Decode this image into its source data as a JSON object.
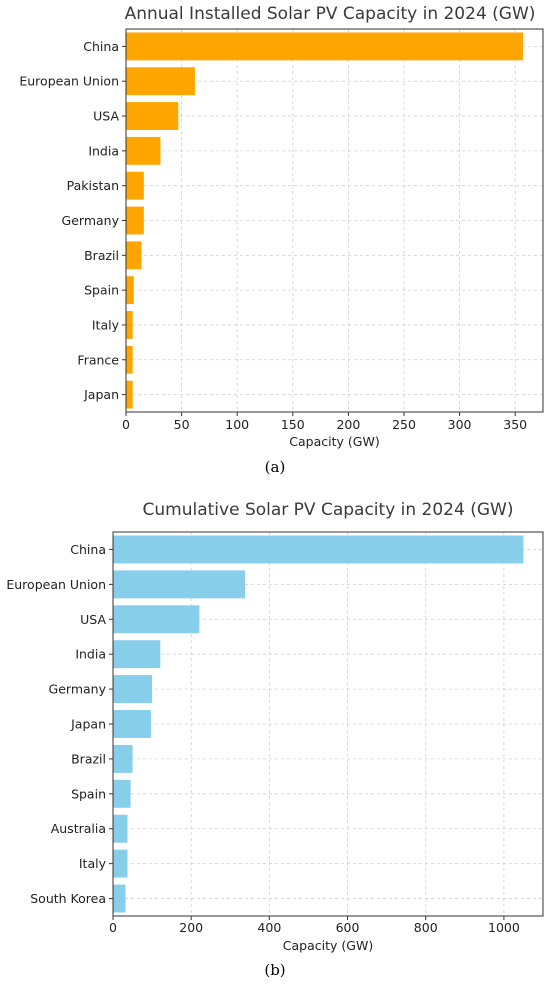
{
  "chart_data": [
    {
      "type": "bar",
      "orientation": "horizontal",
      "title": "Annual Installed Solar PV Capacity in 2024 (GW)",
      "xlabel": "Capacity (GW)",
      "ylabel": "",
      "caption": "(a)",
      "categories": [
        "China",
        "European Union",
        "USA",
        "India",
        "Pakistan",
        "Germany",
        "Brazil",
        "Spain",
        "Italy",
        "France",
        "Japan"
      ],
      "values": [
        357,
        62,
        47,
        31,
        16,
        16,
        14,
        7,
        6,
        6,
        6
      ],
      "xlim": [
        0,
        375
      ],
      "xticks": [
        0,
        50,
        100,
        150,
        200,
        250,
        300,
        350
      ],
      "color": "#FFA500",
      "grid": true,
      "legend": "none"
    },
    {
      "type": "bar",
      "orientation": "horizontal",
      "title": "Cumulative Solar PV Capacity in 2024 (GW)",
      "xlabel": "Capacity (GW)",
      "ylabel": "",
      "caption": "(b)",
      "categories": [
        "China",
        "European Union",
        "USA",
        "India",
        "Germany",
        "Japan",
        "Brazil",
        "Spain",
        "Australia",
        "Italy",
        "South Korea"
      ],
      "values": [
        1050,
        338,
        221,
        121,
        100,
        97,
        50,
        45,
        37,
        37,
        32
      ],
      "xlim": [
        0,
        1100
      ],
      "xticks": [
        0,
        200,
        400,
        600,
        800,
        1000
      ],
      "color": "#87CEEB",
      "grid": true,
      "legend": "none"
    }
  ]
}
